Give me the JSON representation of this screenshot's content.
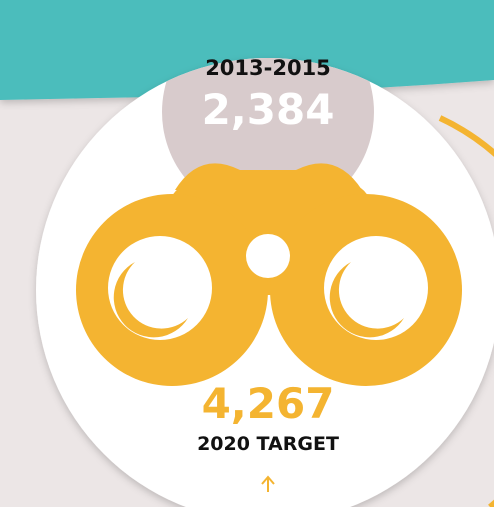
{
  "baseline": {
    "period": "2013-2015",
    "value": "2,384"
  },
  "target": {
    "value": "4,267",
    "label": "2020 TARGET"
  }
}
